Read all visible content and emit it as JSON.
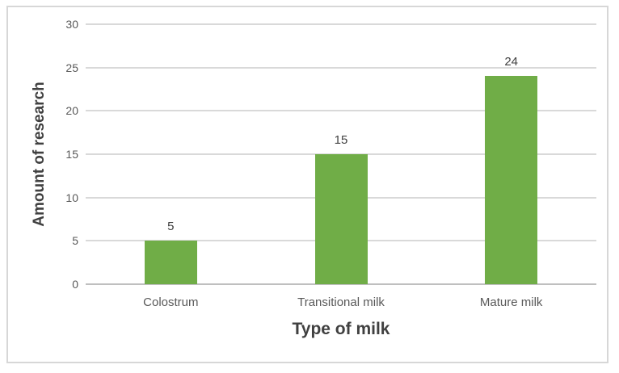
{
  "chart_data": {
    "type": "bar",
    "categories": [
      "Colostrum",
      "Transitional milk",
      "Mature milk"
    ],
    "values": [
      5,
      15,
      24
    ],
    "title": "",
    "xlabel": "Type of milk",
    "ylabel": "Amount of research",
    "ylim": [
      0,
      30
    ],
    "yticks": [
      0,
      5,
      10,
      15,
      20,
      25,
      30
    ],
    "grid": true,
    "legend": "none",
    "data_labels": [
      5,
      15,
      24
    ],
    "colors": {
      "bar": "#70AD47",
      "gridline": "#D9D9D9",
      "axis_line": "#BFBFBF",
      "tick_label": "#595959",
      "data_label": "#404040",
      "axis_title": "#404040",
      "chart_border": "#D7D7D7",
      "background": "#FFFFFF"
    }
  }
}
